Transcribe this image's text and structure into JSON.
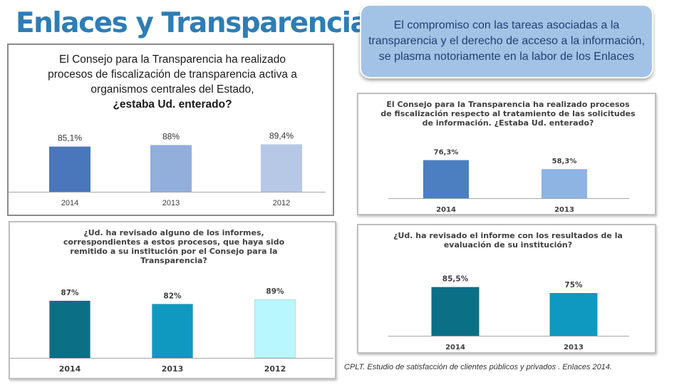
{
  "page": {
    "title": "Enlaces y Transparencia",
    "callout": "El compromiso con las tareas asociadas a la transparencia y el derecho de acceso a la información, se plasma notoriamente en la labor de los Enlaces",
    "source": "CPLT. Estudio de satisfacción de clientes públicos y privados . Enlaces 2014."
  },
  "chart_data": [
    {
      "type": "bar",
      "question_line1": "El Consejo para la Transparencia ha realizado procesos de fiscalización de transparencia activa a organismos centrales del Estado,",
      "question_line2": "¿estaba Ud. enterado?",
      "categories": [
        "2014",
        "2013",
        "2012"
      ],
      "values": [
        85.1,
        88,
        89.4
      ],
      "labels": [
        "85,1%",
        "88%",
        "89,4%"
      ],
      "colors": [
        "#4a76bb",
        "#92aedb",
        "#b6c8e6"
      ],
      "ylim": [
        0,
        100
      ],
      "grid": false
    },
    {
      "type": "bar",
      "question": "El Consejo para la Transparencia ha realizado procesos de fiscalización respecto al tratamiento de las solicitudes de información. ¿Estaba Ud. enterado?",
      "categories": [
        "2014",
        "2013"
      ],
      "values": [
        76.3,
        58.3
      ],
      "labels": [
        "76,3%",
        "58,3%"
      ],
      "colors": [
        "#4c7fc1",
        "#8db4e3"
      ],
      "ylim": [
        0,
        100
      ],
      "grid": false
    },
    {
      "type": "bar",
      "question": "¿Ud. ha revisado alguno de los informes, correspondientes a estos procesos, que haya sido remitido a su institución por el Consejo para la Transparencia?",
      "categories": [
        "2014",
        "2013",
        "2012"
      ],
      "values": [
        87,
        82,
        89
      ],
      "labels": [
        "87%",
        "82%",
        "89%"
      ],
      "colors": [
        "#0b6f85",
        "#1099c0",
        "#b8f7fd"
      ],
      "ylim": [
        0,
        100
      ],
      "grid": false
    },
    {
      "type": "bar",
      "question": "¿Ud. ha revisado el informe con los resultados de la evaluación de su institución?",
      "categories": [
        "2014",
        "2013"
      ],
      "values": [
        85.5,
        75
      ],
      "labels": [
        "85,5%",
        "75%"
      ],
      "colors": [
        "#0b6f85",
        "#1099c0"
      ],
      "ylim": [
        0,
        100
      ],
      "grid": false
    }
  ]
}
